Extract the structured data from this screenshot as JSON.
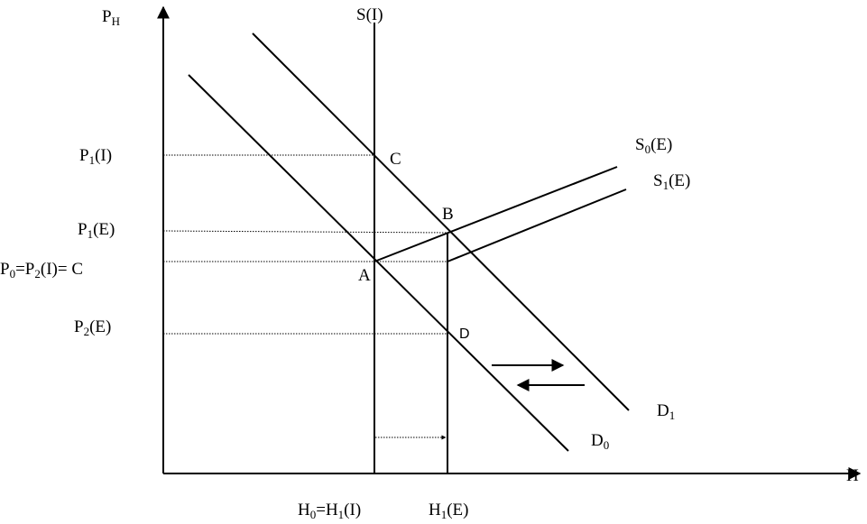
{
  "labels": [
    {
      "parts": [
        {
          "text": "P"
        },
        {
          "sub": "H"
        }
      ]
    },
    {
      "parts": [
        {
          "text": "S(I)"
        }
      ]
    },
    {
      "parts": [
        {
          "text": "P"
        },
        {
          "sub": "1"
        },
        {
          "text": "(I)"
        }
      ]
    },
    {
      "parts": [
        {
          "text": "C"
        }
      ]
    },
    {
      "parts": [
        {
          "text": "S"
        },
        {
          "sub": "0"
        },
        {
          "text": "(E)"
        }
      ]
    },
    {
      "parts": [
        {
          "text": "S"
        },
        {
          "sub": "1"
        },
        {
          "text": "(E)"
        }
      ]
    },
    {
      "parts": [
        {
          "text": "P"
        },
        {
          "sub": "1"
        },
        {
          "text": "(E)"
        }
      ]
    },
    {
      "parts": [
        {
          "text": "B"
        }
      ]
    },
    {
      "parts": [
        {
          "text": "P"
        },
        {
          "sub": "0"
        },
        {
          "text": "=P"
        },
        {
          "sub": "2"
        },
        {
          "text": "(I)= C"
        }
      ]
    },
    {
      "parts": [
        {
          "text": "A"
        }
      ]
    },
    {
      "parts": [
        {
          "text": "P"
        },
        {
          "sub": "2"
        },
        {
          "text": "(E)"
        }
      ]
    },
    {
      "parts": [
        {
          "text": "D"
        }
      ]
    },
    {
      "parts": [
        {
          "text": "D"
        },
        {
          "sub": "1"
        }
      ]
    },
    {
      "parts": [
        {
          "text": "D"
        },
        {
          "sub": "0"
        }
      ]
    },
    {
      "parts": [
        {
          "text": "H"
        }
      ]
    },
    {
      "parts": [
        {
          "text": "H"
        },
        {
          "sub": "0"
        },
        {
          "text": "=H"
        },
        {
          "sub": "1"
        },
        {
          "text": "(I)"
        }
      ]
    },
    {
      "parts": [
        {
          "text": "H"
        },
        {
          "sub": "1"
        },
        {
          "text": "(E)"
        }
      ]
    }
  ]
}
